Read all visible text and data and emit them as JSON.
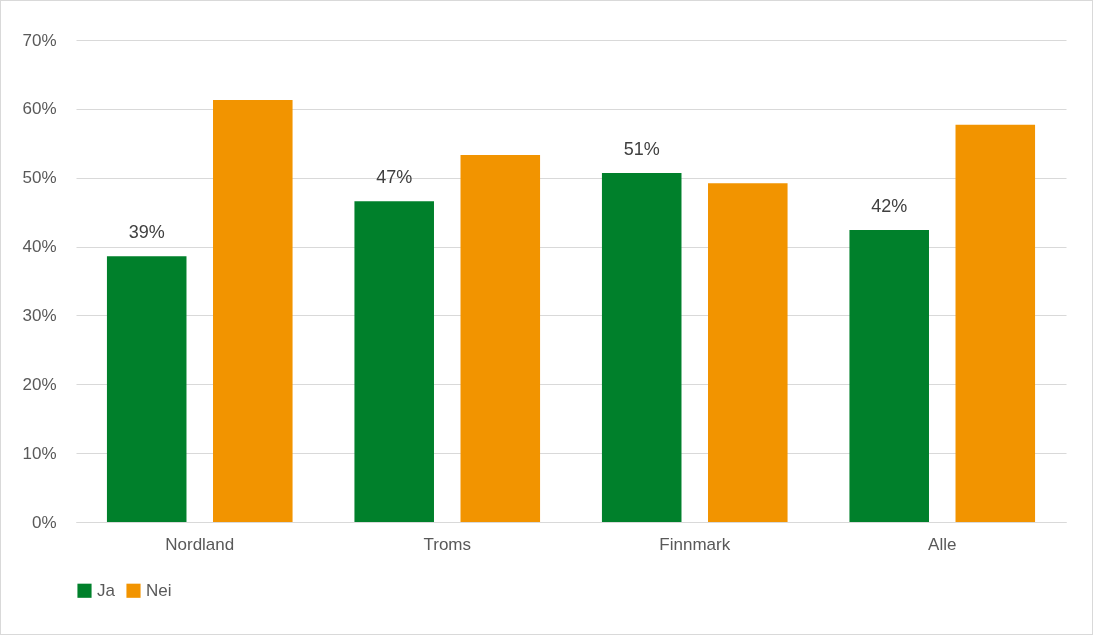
{
  "chart_data": {
    "type": "bar",
    "categories": [
      "Nordland",
      "Troms",
      "Finnmark",
      "Alle"
    ],
    "series": [
      {
        "name": "Ja",
        "color": "#00802b",
        "values": [
          38.6,
          46.6,
          50.7,
          42.4
        ],
        "value_labels": [
          "39%",
          "47%",
          "51%",
          "42%"
        ]
      },
      {
        "name": "Nei",
        "color": "#f29400",
        "values": [
          61.3,
          53.3,
          49.2,
          57.7
        ]
      }
    ],
    "ylim": [
      0,
      70
    ],
    "yticks": [
      {
        "value": 0,
        "label": "0%"
      },
      {
        "value": 10,
        "label": "10%"
      },
      {
        "value": 20,
        "label": "20%"
      },
      {
        "value": 30,
        "label": "30%"
      },
      {
        "value": 40,
        "label": "40%"
      },
      {
        "value": 50,
        "label": "50%"
      },
      {
        "value": 60,
        "label": "60%"
      },
      {
        "value": 70,
        "label": "70%"
      }
    ],
    "grid": "y",
    "legend": "bottom"
  }
}
